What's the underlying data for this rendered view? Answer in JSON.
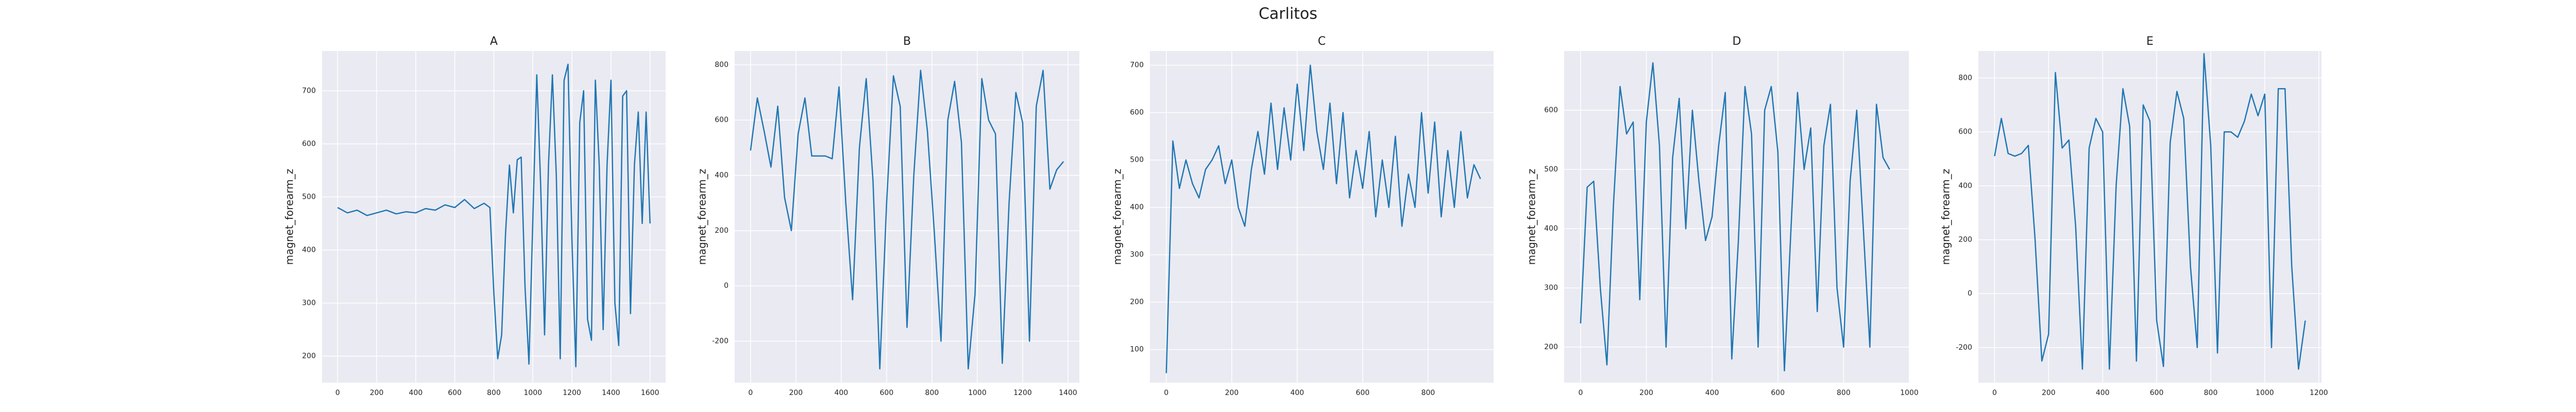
{
  "title": "Carlitos",
  "chart_data": [
    {
      "type": "line",
      "title": "A",
      "ylabel": "magnet_forearm_z",
      "color": "#1f77b4",
      "grid": true,
      "xlim": [
        -80,
        1680
      ],
      "ylim": [
        150,
        775
      ],
      "xticks": [
        0,
        200,
        400,
        600,
        800,
        1000,
        1200,
        1400,
        1600
      ],
      "yticks": [
        200,
        300,
        400,
        500,
        600,
        700
      ],
      "x": [
        0,
        50,
        100,
        150,
        200,
        250,
        300,
        350,
        400,
        450,
        500,
        550,
        600,
        650,
        700,
        750,
        780,
        800,
        820,
        840,
        860,
        880,
        900,
        920,
        940,
        960,
        980,
        1000,
        1020,
        1040,
        1060,
        1080,
        1100,
        1120,
        1140,
        1160,
        1180,
        1200,
        1220,
        1240,
        1260,
        1280,
        1300,
        1320,
        1340,
        1360,
        1380,
        1400,
        1420,
        1440,
        1460,
        1480,
        1500,
        1520,
        1540,
        1560,
        1580,
        1600
      ],
      "values": [
        480,
        470,
        475,
        465,
        470,
        475,
        468,
        472,
        470,
        478,
        475,
        485,
        480,
        495,
        478,
        488,
        480,
        320,
        195,
        240,
        430,
        560,
        470,
        570,
        575,
        330,
        185,
        460,
        730,
        520,
        240,
        560,
        730,
        540,
        195,
        720,
        750,
        420,
        180,
        640,
        700,
        270,
        230,
        720,
        560,
        250,
        560,
        720,
        300,
        220,
        690,
        700,
        280,
        560,
        660,
        450,
        660,
        450
      ]
    },
    {
      "type": "line",
      "title": "B",
      "ylabel": "magnet_forearm_z",
      "color": "#1f77b4",
      "grid": true,
      "xlim": [
        -70,
        1450
      ],
      "ylim": [
        -350,
        850
      ],
      "xticks": [
        0,
        200,
        400,
        600,
        800,
        1000,
        1200,
        1400
      ],
      "yticks": [
        -200,
        0,
        200,
        400,
        600,
        800
      ],
      "x": [
        0,
        30,
        60,
        90,
        120,
        150,
        180,
        210,
        240,
        270,
        300,
        330,
        360,
        390,
        420,
        450,
        480,
        510,
        540,
        570,
        600,
        630,
        660,
        690,
        720,
        750,
        780,
        810,
        840,
        870,
        900,
        930,
        960,
        990,
        1020,
        1050,
        1080,
        1110,
        1140,
        1170,
        1200,
        1230,
        1260,
        1290,
        1320,
        1350,
        1380
      ],
      "values": [
        490,
        680,
        560,
        430,
        650,
        320,
        200,
        550,
        680,
        470,
        470,
        470,
        460,
        720,
        300,
        -50,
        500,
        750,
        380,
        -300,
        300,
        760,
        650,
        -150,
        400,
        780,
        560,
        200,
        -200,
        600,
        740,
        520,
        -300,
        -30,
        750,
        600,
        550,
        -280,
        300,
        700,
        590,
        -200,
        650,
        780,
        350,
        420,
        450
      ]
    },
    {
      "type": "line",
      "title": "C",
      "ylabel": "magnet_forearm_z",
      "color": "#1f77b4",
      "grid": true,
      "xlim": [
        -50,
        1000
      ],
      "ylim": [
        30,
        730
      ],
      "xticks": [
        0,
        200,
        400,
        600,
        800
      ],
      "yticks": [
        100,
        200,
        300,
        400,
        500,
        600,
        700
      ],
      "x": [
        0,
        20,
        40,
        60,
        80,
        100,
        120,
        140,
        160,
        180,
        200,
        220,
        240,
        260,
        280,
        300,
        320,
        340,
        360,
        380,
        400,
        420,
        440,
        460,
        480,
        500,
        520,
        540,
        560,
        580,
        600,
        620,
        640,
        660,
        680,
        700,
        720,
        740,
        760,
        780,
        800,
        820,
        840,
        860,
        880,
        900,
        920,
        940,
        960
      ],
      "values": [
        50,
        540,
        440,
        500,
        450,
        420,
        480,
        500,
        530,
        450,
        500,
        400,
        360,
        480,
        560,
        470,
        620,
        480,
        610,
        500,
        660,
        520,
        700,
        560,
        480,
        620,
        450,
        600,
        420,
        520,
        440,
        560,
        380,
        500,
        400,
        550,
        360,
        470,
        400,
        600,
        430,
        580,
        380,
        520,
        400,
        560,
        420,
        490,
        460
      ]
    },
    {
      "type": "line",
      "title": "D",
      "ylabel": "magnet_forearm_z",
      "color": "#1f77b4",
      "grid": true,
      "xlim": [
        -50,
        1000
      ],
      "ylim": [
        140,
        700
      ],
      "xticks": [
        0,
        200,
        400,
        600,
        800,
        1000
      ],
      "yticks": [
        200,
        300,
        400,
        500,
        600
      ],
      "x": [
        0,
        20,
        40,
        60,
        80,
        100,
        120,
        140,
        160,
        180,
        200,
        220,
        240,
        260,
        280,
        300,
        320,
        340,
        360,
        380,
        400,
        420,
        440,
        460,
        480,
        500,
        520,
        540,
        560,
        580,
        600,
        620,
        640,
        660,
        680,
        700,
        720,
        740,
        760,
        780,
        800,
        820,
        840,
        860,
        880,
        900,
        920,
        940
      ],
      "values": [
        240,
        470,
        480,
        300,
        170,
        440,
        640,
        560,
        580,
        280,
        580,
        680,
        540,
        200,
        520,
        620,
        400,
        600,
        480,
        380,
        420,
        540,
        630,
        180,
        380,
        640,
        560,
        200,
        600,
        640,
        530,
        160,
        400,
        630,
        500,
        570,
        260,
        540,
        610,
        300,
        200,
        480,
        600,
        400,
        200,
        610,
        520,
        500
      ]
    },
    {
      "type": "line",
      "title": "E",
      "ylabel": "magnet_forearm_z",
      "color": "#1f77b4",
      "grid": true,
      "xlim": [
        -60,
        1210
      ],
      "ylim": [
        -330,
        900
      ],
      "xticks": [
        0,
        200,
        400,
        600,
        800,
        1000,
        1200
      ],
      "yticks": [
        -200,
        0,
        200,
        400,
        600,
        800
      ],
      "x": [
        0,
        25,
        50,
        75,
        100,
        125,
        150,
        175,
        200,
        225,
        250,
        275,
        300,
        325,
        350,
        375,
        400,
        425,
        450,
        475,
        500,
        525,
        550,
        575,
        600,
        625,
        650,
        675,
        700,
        725,
        750,
        775,
        800,
        825,
        850,
        875,
        900,
        925,
        950,
        975,
        1000,
        1025,
        1050,
        1075,
        1100,
        1125,
        1150
      ],
      "values": [
        510,
        650,
        520,
        510,
        520,
        550,
        200,
        -250,
        -150,
        820,
        540,
        570,
        250,
        -280,
        540,
        650,
        600,
        -280,
        400,
        760,
        620,
        -250,
        700,
        640,
        -100,
        -270,
        560,
        750,
        650,
        100,
        -200,
        890,
        550,
        -220,
        600,
        600,
        580,
        640,
        740,
        660,
        740,
        -200,
        760,
        760,
        100,
        -280,
        -100
      ]
    }
  ]
}
